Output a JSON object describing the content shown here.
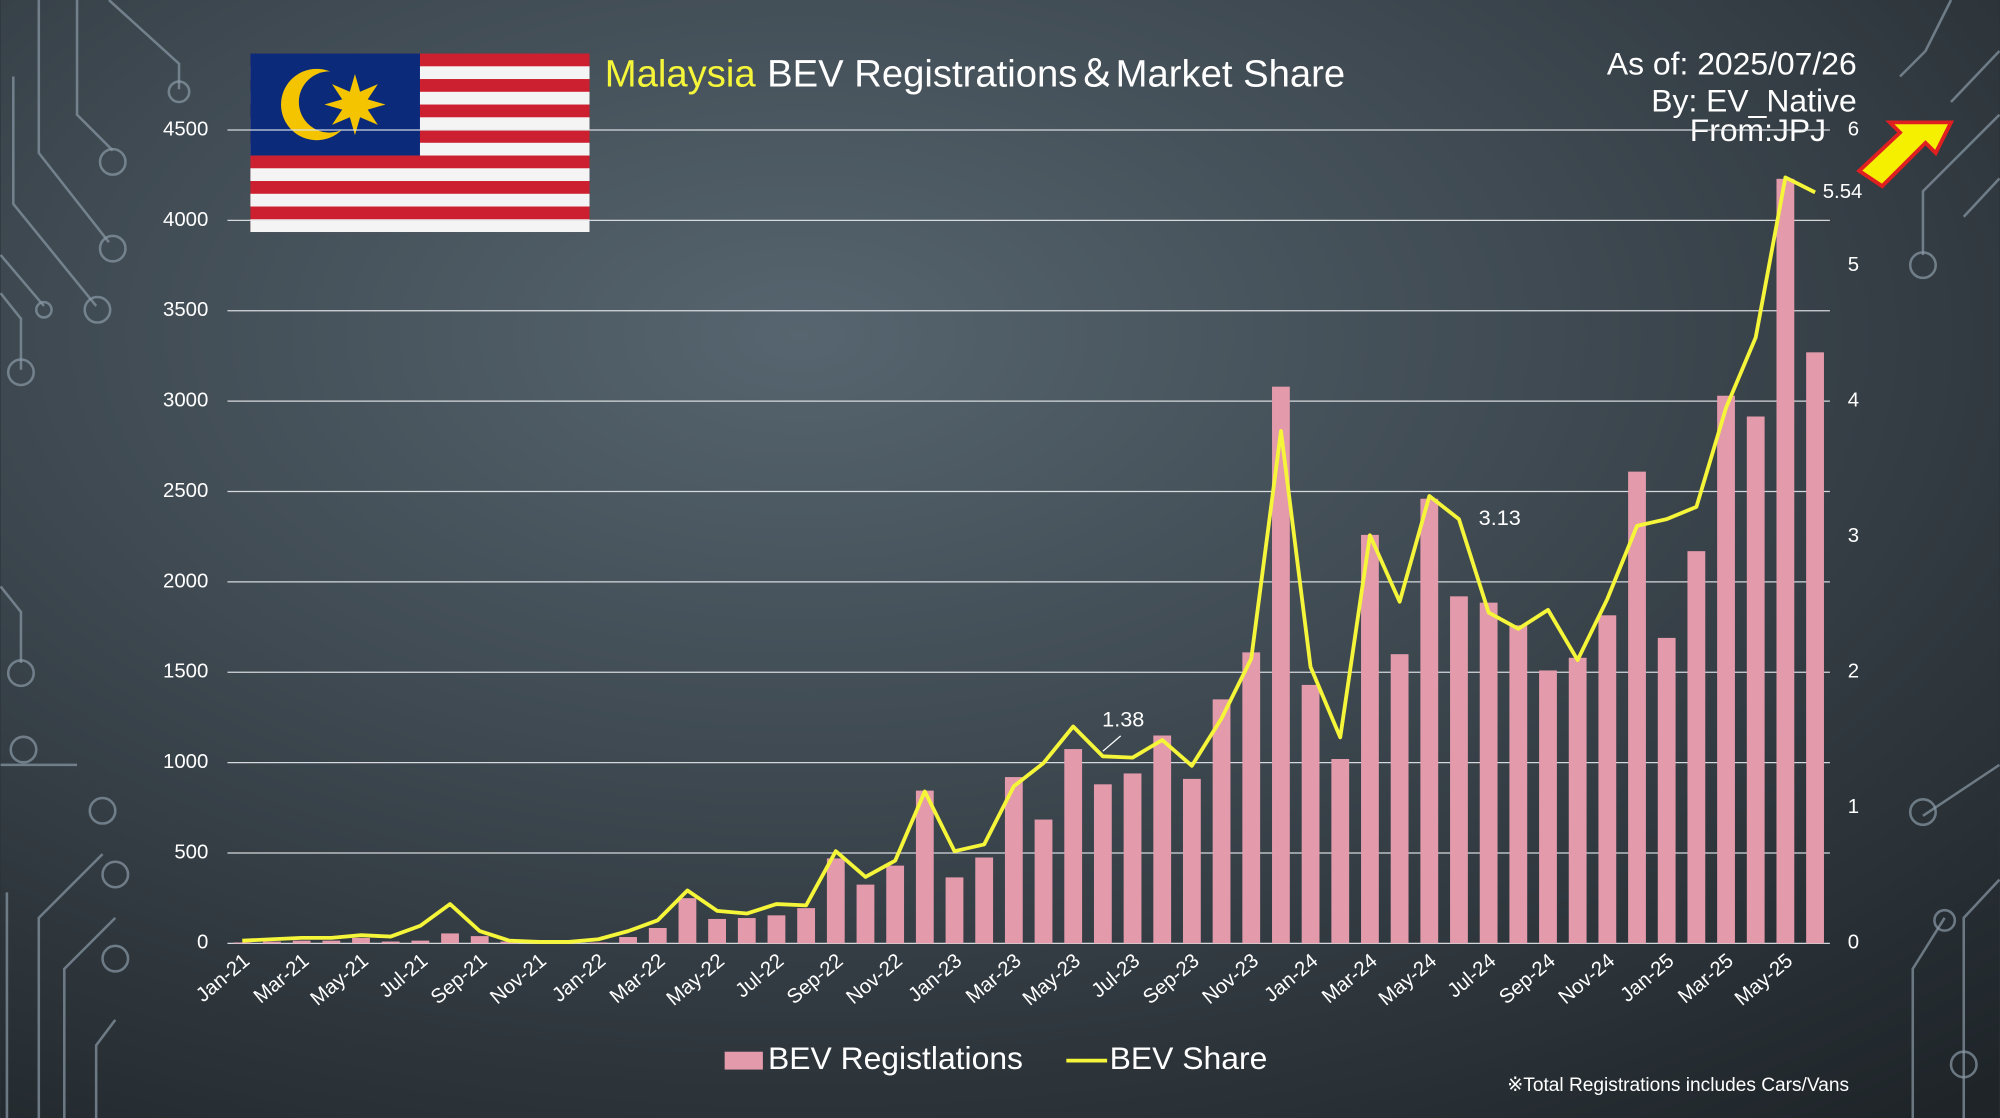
{
  "chart_data": {
    "type": "bar",
    "title_highlight": "Malaysia",
    "title": "BEV Registrations＆Market Share",
    "notes": [
      "As of: 2025/07/26",
      "By: EV_Native",
      "From:JPJ"
    ],
    "footnote": "※Total Registrations includes Cars/Vans",
    "categories": [
      "Jan-21",
      null,
      "Mar-21",
      null,
      "May-21",
      null,
      "Jul-21",
      null,
      "Sep-21",
      null,
      "Nov-21",
      null,
      "Jan-22",
      null,
      "Mar-22",
      null,
      "May-22",
      null,
      "Jul-22",
      null,
      "Sep-22",
      null,
      "Nov-22",
      null,
      "Jan-23",
      null,
      "Mar-23",
      null,
      "May-23",
      null,
      "Jul-23",
      null,
      "Sep-23",
      null,
      "Nov-23",
      null,
      "Jan-24",
      null,
      "Mar-24",
      null,
      "May-24",
      null,
      "Jul-24",
      null,
      "Sep-24",
      null,
      "Nov-24",
      null,
      "Jan-25",
      null,
      "Mar-25",
      null,
      "May-25",
      null
    ],
    "series": [
      {
        "name": "BEV Registlations",
        "type": "bar",
        "color": "#e39aab",
        "values": [
          5,
          10,
          15,
          15,
          30,
          10,
          15,
          55,
          40,
          10,
          5,
          5,
          5,
          35,
          85,
          250,
          135,
          140,
          155,
          195,
          470,
          325,
          430,
          845,
          365,
          475,
          920,
          685,
          1075,
          880,
          940,
          1150,
          910,
          1350,
          1610,
          3080,
          1430,
          1020,
          2260,
          1600,
          2460,
          1920,
          1885,
          1760,
          1510,
          1580,
          1815,
          2610,
          1690,
          2170,
          3030,
          2915,
          4230,
          3270
        ]
      },
      {
        "name": "BEV Share",
        "type": "line",
        "axis": "y2",
        "color": "#f5f53a",
        "values": [
          0.02,
          0.03,
          0.04,
          0.04,
          0.06,
          0.05,
          0.13,
          0.29,
          0.09,
          0.02,
          0.01,
          0.01,
          0.03,
          0.09,
          0.17,
          0.39,
          0.24,
          0.22,
          0.29,
          0.28,
          0.68,
          0.49,
          0.61,
          1.12,
          0.68,
          0.73,
          1.16,
          1.33,
          1.6,
          1.38,
          1.37,
          1.5,
          1.31,
          1.66,
          2.1,
          3.78,
          2.04,
          1.52,
          3.01,
          2.52,
          3.3,
          3.13,
          2.44,
          2.32,
          2.46,
          2.09,
          2.54,
          3.08,
          3.13,
          3.22,
          3.95,
          4.47,
          5.65,
          5.54
        ],
        "value_labels": [
          null,
          null,
          null,
          null,
          null,
          null,
          null,
          null,
          null,
          null,
          null,
          null,
          null,
          null,
          null,
          null,
          null,
          null,
          null,
          null,
          null,
          null,
          null,
          null,
          null,
          null,
          null,
          null,
          null,
          "1.38",
          null,
          null,
          null,
          null,
          null,
          null,
          null,
          null,
          null,
          null,
          null,
          "3.13",
          null,
          null,
          null,
          null,
          null,
          null,
          null,
          null,
          null,
          null,
          null,
          "5.54"
        ]
      }
    ],
    "ylim": [
      0,
      4500
    ],
    "yticks": [
      0,
      500,
      1000,
      1500,
      2000,
      2500,
      3000,
      3500,
      4000,
      4500
    ],
    "y2lim": [
      0,
      6
    ],
    "y2ticks": [
      0,
      1,
      2,
      3,
      4,
      5,
      6
    ],
    "grid": true,
    "legend": "bottom"
  }
}
